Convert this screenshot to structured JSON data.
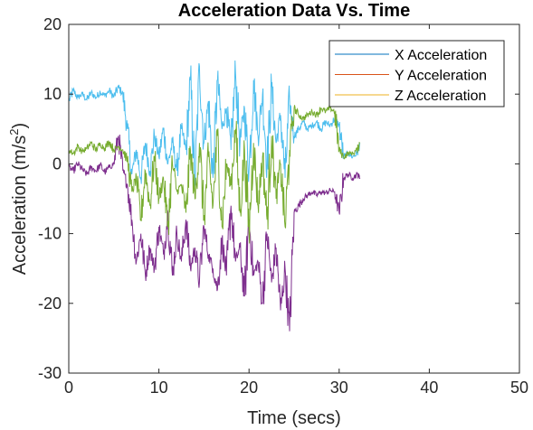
{
  "chart_data": {
    "type": "line",
    "title": "Acceleration Data Vs. Time",
    "xlabel": "Time (secs)",
    "ylabel_main": "Acceleration (m/s",
    "ylabel_sup": "2",
    "ylabel_close": ")",
    "xlim": [
      0,
      50
    ],
    "ylim": [
      -30,
      20
    ],
    "xticks": [
      0,
      10,
      20,
      30,
      40,
      50
    ],
    "yticks": [
      -30,
      -20,
      -10,
      0,
      10,
      20
    ],
    "xtick_labels": [
      "0",
      "10",
      "20",
      "30",
      "40",
      "50"
    ],
    "ytick_labels": [
      "-30",
      "-20",
      "-10",
      "0",
      "10",
      "20"
    ],
    "grid": false,
    "legend_position": "top-right",
    "legend": [
      {
        "label": "X Acceleration",
        "color": "#0072BD"
      },
      {
        "label": "Y Acceleration",
        "color": "#D95319"
      },
      {
        "label": "Z Acceleration",
        "color": "#EDB120"
      }
    ],
    "series": [
      {
        "name": "X Acceleration",
        "color": "#4DBEEE",
        "x": [
          0,
          0.5,
          1,
          1.5,
          2,
          2.5,
          3,
          3.5,
          4,
          4.5,
          5,
          5.5,
          6,
          6.5,
          7,
          7.5,
          8,
          8.5,
          9,
          9.5,
          10,
          10.5,
          11,
          11.5,
          12,
          12.5,
          13,
          13.5,
          14,
          14.5,
          15,
          15.5,
          16,
          16.5,
          17,
          17.5,
          18,
          18.5,
          19,
          19.5,
          20,
          20.5,
          21,
          21.5,
          22,
          22.5,
          23,
          23.5,
          24,
          24.5,
          25,
          25.5,
          26,
          26.5,
          27,
          27.5,
          28,
          28.5,
          29,
          29.5,
          30,
          30.5,
          31,
          31.5,
          32,
          32.3
        ],
        "y": [
          9,
          10.5,
          9.5,
          10,
          9.2,
          10.2,
          9.5,
          10.3,
          9.8,
          10.5,
          9.6,
          11,
          10,
          5,
          -1.5,
          2,
          -2,
          3,
          -1,
          4,
          1,
          5,
          0,
          3,
          -1,
          5,
          2,
          12,
          -3,
          14,
          3,
          9,
          -2,
          12,
          5,
          8,
          2,
          13,
          3,
          8,
          -1,
          12,
          4,
          10,
          0,
          11,
          3,
          7,
          -2,
          9,
          4,
          5,
          6,
          5,
          5.5,
          6,
          5,
          6,
          5.5,
          6.5,
          5.5,
          1,
          1.5,
          1,
          1.5,
          3
        ],
        "dense": true
      },
      {
        "name": "Y Acceleration",
        "color": "#7E2F8E",
        "x": [
          0,
          0.5,
          1,
          1.5,
          2,
          2.5,
          3,
          3.5,
          4,
          4.5,
          5,
          5.5,
          6,
          6.5,
          7,
          7.5,
          8,
          8.5,
          9,
          9.5,
          10,
          10.5,
          11,
          11.5,
          12,
          12.5,
          13,
          13.5,
          14,
          14.5,
          15,
          15.5,
          16,
          16.5,
          17,
          17.5,
          18,
          18.5,
          19,
          19.5,
          20,
          20.5,
          21,
          21.5,
          22,
          22.5,
          23,
          23.5,
          24,
          24.5,
          25,
          25.5,
          26,
          26.5,
          27,
          27.5,
          28,
          28.5,
          29,
          29.5,
          30,
          30.5,
          31,
          31.5,
          32,
          32.3
        ],
        "y": [
          -0.5,
          -1,
          0,
          -0.8,
          -1.5,
          -0.5,
          -1,
          -0.2,
          -1.2,
          -0.5,
          0,
          4,
          -1,
          -3,
          -8,
          -14,
          -10,
          -16,
          -12,
          -15,
          -9,
          -13,
          -7,
          -16,
          -10,
          -14,
          -8,
          -15,
          -12,
          -17,
          -9,
          -13,
          -15,
          -18,
          -11,
          -16,
          -6,
          -14,
          -12,
          -19,
          -8,
          -16,
          -14,
          -20,
          -10,
          -17,
          -12,
          -21,
          -15,
          -24,
          -7,
          -6,
          -5,
          -4.5,
          -4,
          -4.5,
          -4,
          -4.2,
          -3.8,
          -4,
          -7,
          -2,
          -1.5,
          -2,
          -1.5,
          -2
        ],
        "dense": true
      },
      {
        "name": "Z Acceleration",
        "color": "#77AC30",
        "x": [
          0,
          0.5,
          1,
          1.5,
          2,
          2.5,
          3,
          3.5,
          4,
          4.5,
          5,
          5.5,
          6,
          6.5,
          7,
          7.5,
          8,
          8.5,
          9,
          9.5,
          10,
          10.5,
          11,
          11.5,
          12,
          12.5,
          13,
          13.5,
          14,
          14.5,
          15,
          15.5,
          16,
          16.5,
          17,
          17.5,
          18,
          18.5,
          19,
          19.5,
          20,
          20.5,
          21,
          21.5,
          22,
          22.5,
          23,
          23.5,
          24,
          24.5,
          25,
          25.5,
          26,
          26.5,
          27,
          27.5,
          28,
          28.5,
          29,
          29.5,
          30,
          30.5,
          31,
          31.5,
          32,
          32.3
        ],
        "y": [
          2,
          1.5,
          2.5,
          1.8,
          2.2,
          3,
          2,
          2.8,
          2.3,
          3.2,
          2,
          2.5,
          2,
          0.5,
          -4,
          -2,
          -8,
          -1,
          -6,
          1,
          -5,
          -2,
          -9,
          0,
          -4,
          -3,
          -7,
          2,
          -5,
          3,
          -8,
          1,
          -6,
          4,
          -9,
          0,
          -3,
          5,
          -7,
          2,
          -10,
          3,
          -6,
          1,
          -8,
          4,
          -5,
          0,
          -9,
          2,
          8,
          7,
          6.5,
          7,
          7.5,
          7,
          8,
          7.5,
          8,
          7.5,
          2,
          1,
          1.5,
          1.5,
          2,
          3
        ],
        "dense": true
      }
    ]
  }
}
